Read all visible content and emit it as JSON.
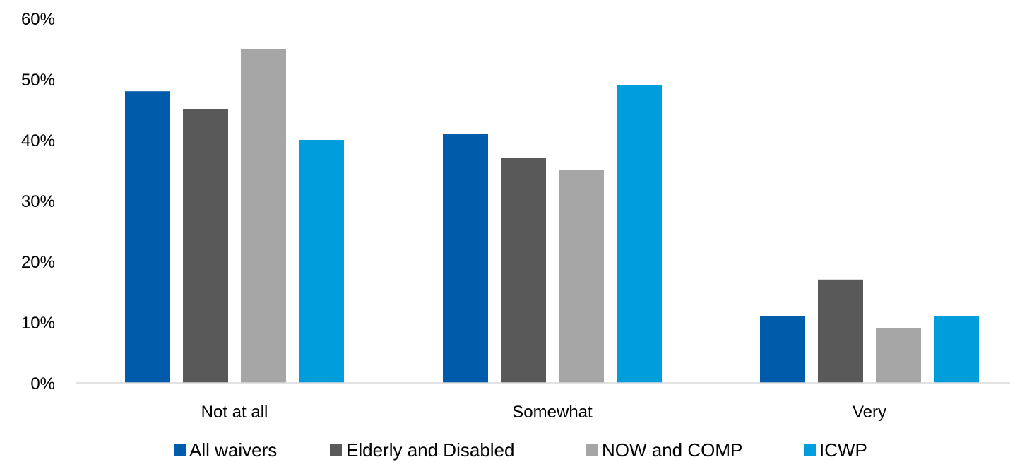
{
  "chart_data": {
    "type": "bar",
    "title": "",
    "xlabel": "",
    "ylabel": "",
    "categories": [
      "Not at all",
      "Somewhat",
      "Very"
    ],
    "ylim": [
      0,
      60
    ],
    "yticks": [
      0,
      10,
      20,
      30,
      40,
      50,
      60
    ],
    "ytick_labels": [
      "0%",
      "10%",
      "20%",
      "30%",
      "40%",
      "50%",
      "60%"
    ],
    "grid": false,
    "legend_position": "bottom",
    "series": [
      {
        "name": "All waivers",
        "color": "#005BAA",
        "values": [
          48,
          41,
          11
        ]
      },
      {
        "name": "Elderly and Disabled",
        "color": "#595959",
        "values": [
          45,
          37,
          17
        ]
      },
      {
        "name": "NOW and COMP",
        "color": "#A6A6A6",
        "values": [
          55,
          35,
          9
        ]
      },
      {
        "name": "ICWP",
        "color": "#009DDC",
        "values": [
          40,
          49,
          11
        ]
      }
    ]
  }
}
